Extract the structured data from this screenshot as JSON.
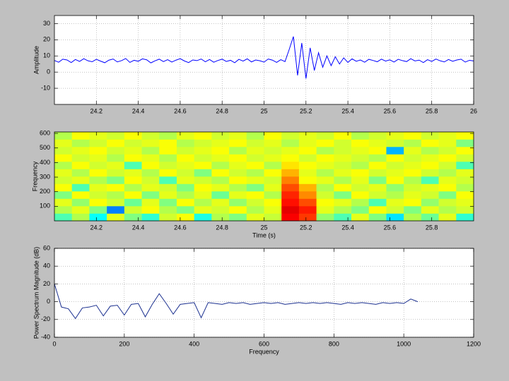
{
  "chart_data": [
    {
      "type": "line",
      "ylabel": "Amplitude",
      "color": "#0000ff",
      "grid": true,
      "xlim": [
        24,
        26
      ],
      "xticks": [
        24.2,
        24.4,
        24.6,
        24.8,
        25,
        25.2,
        25.4,
        25.6,
        25.8,
        26
      ],
      "ylim": [
        -20,
        35
      ],
      "yticks": [
        -10,
        0,
        10,
        20,
        30
      ],
      "x": [
        24,
        24.02,
        24.04,
        24.06,
        24.08,
        24.1,
        24.12,
        24.14,
        24.16,
        24.18,
        24.2,
        24.22,
        24.24,
        24.26,
        24.28,
        24.3,
        24.32,
        24.34,
        24.36,
        24.38,
        24.4,
        24.42,
        24.44,
        24.46,
        24.48,
        24.5,
        24.52,
        24.54,
        24.56,
        24.58,
        24.6,
        24.62,
        24.64,
        24.66,
        24.68,
        24.7,
        24.72,
        24.74,
        24.76,
        24.78,
        24.8,
        24.82,
        24.84,
        24.86,
        24.88,
        24.9,
        24.92,
        24.94,
        24.96,
        24.98,
        25,
        25.02,
        25.04,
        25.06,
        25.08,
        25.1,
        25.12,
        25.14,
        25.16,
        25.18,
        25.2,
        25.22,
        25.24,
        25.26,
        25.28,
        25.3,
        25.32,
        25.34,
        25.36,
        25.38,
        25.4,
        25.42,
        25.44,
        25.46,
        25.48,
        25.5,
        25.52,
        25.54,
        25.56,
        25.58,
        25.6,
        25.62,
        25.64,
        25.66,
        25.68,
        25.7,
        25.72,
        25.74,
        25.76,
        25.78,
        25.8,
        25.82,
        25.84,
        25.86,
        25.88,
        25.9,
        25.92,
        25.94,
        25.96,
        25.98,
        26
      ],
      "values": [
        7.2,
        6.1,
        8.0,
        7.5,
        5.9,
        7.8,
        6.6,
        8.3,
        7.0,
        6.4,
        7.9,
        6.8,
        5.8,
        7.4,
        8.1,
        6.3,
        7.1,
        8.4,
        6.0,
        7.3,
        6.7,
        8.2,
        7.6,
        5.7,
        7.0,
        8.0,
        6.5,
        7.7,
        6.2,
        7.4,
        8.3,
        6.9,
        5.9,
        7.5,
        7.1,
        8.1,
        6.4,
        7.8,
        6.1,
        7.2,
        8.0,
        6.6,
        7.3,
        5.8,
        7.9,
        6.8,
        8.2,
        6.3,
        7.5,
        7.0,
        6.2,
        8.1,
        7.4,
        6.0,
        7.7,
        6.5,
        14,
        22,
        -2,
        18,
        -4,
        15,
        1,
        12,
        3,
        10,
        4,
        9.5,
        5,
        8.8,
        6.0,
        8.2,
        6.7,
        7.5,
        6.1,
        7.9,
        7.2,
        6.4,
        8.0,
        6.8,
        7.6,
        6.2,
        7.9,
        7.1,
        6.5,
        8.3,
        6.9,
        7.4,
        5.9,
        7.7,
        6.6,
        8.1,
        7.0,
        6.3,
        7.8,
        6.7,
        7.5,
        8.0,
        6.2,
        7.3,
        6.9
      ]
    },
    {
      "type": "heatmap",
      "ylabel": "Frequency",
      "xlabel": "Time (s)",
      "colormap": "jet",
      "grid": false,
      "xlim": [
        24,
        26
      ],
      "xticks": [
        24.2,
        24.4,
        24.6,
        24.8,
        25,
        25.2,
        25.4,
        25.6,
        25.8
      ],
      "ylim": [
        0,
        610
      ],
      "yticks": [
        100,
        200,
        300,
        400,
        500,
        600
      ],
      "z": [
        [
          0.45,
          0.55,
          0.38,
          0.6,
          0.5,
          0.42,
          0.58,
          0.62,
          0.4,
          0.55,
          0.5,
          0.6,
          0.57,
          0.88,
          0.82,
          0.52,
          0.45,
          0.6,
          0.5,
          0.35,
          0.55,
          0.48,
          0.6,
          0.42
        ],
        [
          0.55,
          0.6,
          0.5,
          0.25,
          0.58,
          0.62,
          0.55,
          0.5,
          0.6,
          0.58,
          0.62,
          0.55,
          0.6,
          0.9,
          0.85,
          0.6,
          0.55,
          0.5,
          0.62,
          0.58,
          0.5,
          0.6,
          0.55,
          0.58
        ],
        [
          0.6,
          0.52,
          0.62,
          0.58,
          0.48,
          0.6,
          0.5,
          0.62,
          0.55,
          0.6,
          0.52,
          0.58,
          0.62,
          0.86,
          0.8,
          0.62,
          0.6,
          0.55,
          0.45,
          0.6,
          0.62,
          0.52,
          0.58,
          0.6
        ],
        [
          0.5,
          0.62,
          0.58,
          0.55,
          0.62,
          0.5,
          0.6,
          0.55,
          0.6,
          0.48,
          0.6,
          0.62,
          0.55,
          0.84,
          0.74,
          0.58,
          0.5,
          0.62,
          0.58,
          0.55,
          0.6,
          0.58,
          0.5,
          0.62
        ],
        [
          0.62,
          0.45,
          0.6,
          0.62,
          0.55,
          0.6,
          0.58,
          0.5,
          0.62,
          0.6,
          0.55,
          0.5,
          0.6,
          0.8,
          0.7,
          0.55,
          0.62,
          0.58,
          0.6,
          0.52,
          0.58,
          0.6,
          0.62,
          0.55
        ],
        [
          0.58,
          0.6,
          0.55,
          0.5,
          0.62,
          0.58,
          0.45,
          0.6,
          0.58,
          0.55,
          0.62,
          0.6,
          0.58,
          0.75,
          0.62,
          0.6,
          0.55,
          0.6,
          0.5,
          0.62,
          0.55,
          0.45,
          0.6,
          0.58
        ],
        [
          0.6,
          0.55,
          0.62,
          0.58,
          0.6,
          0.55,
          0.62,
          0.58,
          0.5,
          0.62,
          0.58,
          0.55,
          0.62,
          0.7,
          0.6,
          0.55,
          0.6,
          0.62,
          0.58,
          0.6,
          0.62,
          0.58,
          0.55,
          0.6
        ],
        [
          0.55,
          0.62,
          0.58,
          0.6,
          0.45,
          0.62,
          0.58,
          0.6,
          0.62,
          0.55,
          0.6,
          0.62,
          0.55,
          0.65,
          0.62,
          0.6,
          0.58,
          0.55,
          0.62,
          0.58,
          0.6,
          0.62,
          0.58,
          0.45
        ],
        [
          0.62,
          0.58,
          0.6,
          0.55,
          0.62,
          0.6,
          0.55,
          0.62,
          0.58,
          0.6,
          0.62,
          0.58,
          0.6,
          0.62,
          0.58,
          0.62,
          0.6,
          0.58,
          0.55,
          0.62,
          0.58,
          0.6,
          0.62,
          0.58
        ],
        [
          0.58,
          0.6,
          0.62,
          0.58,
          0.6,
          0.55,
          0.62,
          0.58,
          0.6,
          0.62,
          0.55,
          0.6,
          0.58,
          0.6,
          0.62,
          0.55,
          0.58,
          0.6,
          0.62,
          0.3,
          0.6,
          0.55,
          0.58,
          0.62
        ],
        [
          0.6,
          0.55,
          0.58,
          0.62,
          0.58,
          0.6,
          0.62,
          0.55,
          0.58,
          0.6,
          0.62,
          0.58,
          0.6,
          0.55,
          0.6,
          0.62,
          0.58,
          0.62,
          0.6,
          0.58,
          0.55,
          0.62,
          0.6,
          0.5
        ],
        [
          0.55,
          0.62,
          0.6,
          0.58,
          0.62,
          0.58,
          0.55,
          0.6,
          0.62,
          0.58,
          0.6,
          0.55,
          0.62,
          0.58,
          0.6,
          0.58,
          0.62,
          0.55,
          0.58,
          0.6,
          0.62,
          0.58,
          0.6,
          0.62
        ]
      ]
    },
    {
      "type": "line",
      "ylabel": "Power Spectrum Magnitude (dB)",
      "xlabel": "Frequency",
      "color": "#1a2f8f",
      "grid": true,
      "xlim": [
        0,
        1200
      ],
      "xticks": [
        0,
        200,
        400,
        600,
        800,
        1000,
        1200
      ],
      "ylim": [
        -40,
        60
      ],
      "yticks": [
        -40,
        -20,
        0,
        20,
        40,
        60
      ],
      "x": [
        0,
        20,
        40,
        60,
        80,
        100,
        120,
        140,
        160,
        180,
        200,
        220,
        240,
        260,
        280,
        300,
        320,
        340,
        360,
        380,
        400,
        420,
        440,
        460,
        480,
        500,
        520,
        540,
        560,
        580,
        600,
        620,
        640,
        660,
        680,
        700,
        720,
        740,
        760,
        780,
        800,
        820,
        840,
        860,
        880,
        900,
        920,
        940,
        960,
        980,
        1000,
        1020,
        1040
      ],
      "values": [
        20,
        -6,
        -8,
        -19,
        -7,
        -6,
        -4,
        -16,
        -5,
        -4,
        -15,
        -3,
        -2,
        -17,
        -3,
        9,
        -2,
        -14,
        -3,
        -2,
        -1,
        -18,
        -1,
        -2,
        -3,
        -1,
        -2,
        -1,
        -3,
        -2,
        -1,
        -2,
        -1,
        -3,
        -2,
        -1,
        -2,
        -1,
        -2,
        -1,
        -2,
        -3,
        -1,
        -2,
        -1,
        -2,
        -3,
        -1,
        -2,
        -1,
        -2,
        3,
        0
      ]
    }
  ]
}
